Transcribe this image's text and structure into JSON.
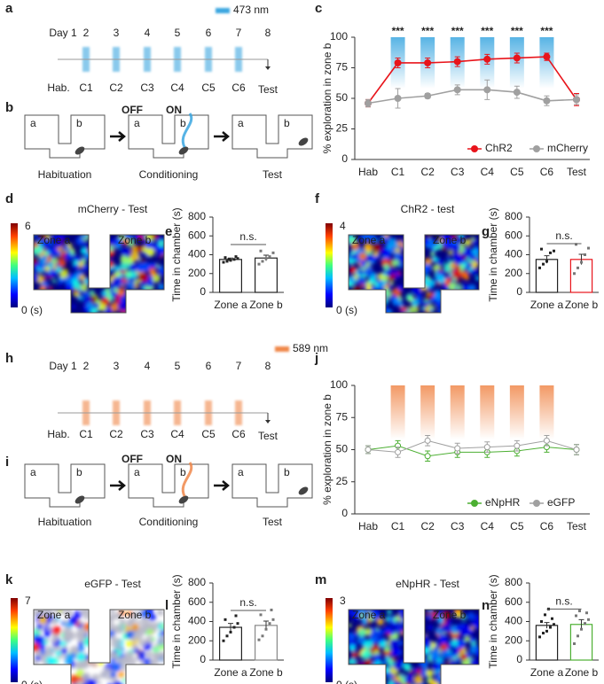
{
  "panel_labels": [
    "a",
    "b",
    "c",
    "d",
    "e",
    "f",
    "g",
    "h",
    "i",
    "j",
    "k",
    "l",
    "m",
    "n"
  ],
  "timelines": [
    {
      "laser": "473 nm",
      "color": "#3aa6e0",
      "day_start": "Day 1",
      "days": [
        "2",
        "3",
        "4",
        "5",
        "6",
        "7",
        "8"
      ],
      "sessions": [
        "Hab.",
        "C1",
        "C2",
        "C3",
        "C4",
        "C5",
        "C6",
        "Test"
      ]
    },
    {
      "laser": "589 nm",
      "color": "#f0874a",
      "day_start": "Day 1",
      "days": [
        "2",
        "3",
        "4",
        "5",
        "6",
        "7",
        "8"
      ],
      "sessions": [
        "Hab.",
        "C1",
        "C2",
        "C3",
        "C4",
        "C5",
        "C6",
        "Test"
      ]
    }
  ],
  "schematics": [
    {
      "zones": [
        "a",
        "b"
      ],
      "off": "OFF",
      "on": "ON",
      "on_color": "#3aa6e0",
      "stages": [
        "Habituation",
        "Conditioning",
        "Test"
      ]
    },
    {
      "zones": [
        "a",
        "b"
      ],
      "off": "OFF",
      "on": "ON",
      "on_color": "#f0874a",
      "stages": [
        "Habituation",
        "Conditioning",
        "Test"
      ]
    }
  ],
  "heatmaps": [
    {
      "title": "mCherry - Test",
      "title_color": "#222222",
      "cbar_max": 6,
      "cbar_min": "0 (s)",
      "zones": [
        "Zone a",
        "Zone b"
      ],
      "background": "#00007f"
    },
    {
      "title": "ChR2 - test",
      "title_color": "#e8141b",
      "cbar_max": 4,
      "cbar_min": "0 (s)",
      "zones": [
        "Zone a",
        "Zone b"
      ],
      "background": "#00007f"
    },
    {
      "title": "eGFP - Test",
      "title_color": "#222222",
      "cbar_max": 7,
      "cbar_min": "0 (s)",
      "zones": [
        "Zone a",
        "Zone b"
      ],
      "background": "#ffffff"
    },
    {
      "title": "eNpHR - Test",
      "title_color": "#4caf32",
      "cbar_max": 3,
      "cbar_min": "0 (s)",
      "zones": [
        "Zone a",
        "Zone b"
      ],
      "background": "#00007f"
    }
  ],
  "chart_data": [
    {
      "type": "line",
      "ylabel": "% exploration in zone b",
      "categories": [
        "Hab",
        "C1",
        "C2",
        "C3",
        "C4",
        "C5",
        "C6",
        "Test"
      ],
      "ylim": [
        0,
        100
      ],
      "yticks": [
        0,
        25,
        50,
        75,
        100
      ],
      "stim_color": "#3aa6e0",
      "annotations": [
        "***",
        "***",
        "***",
        "***",
        "***",
        "***"
      ],
      "legend": "lower right",
      "hollow_markers": false,
      "series": [
        {
          "name": "ChR2",
          "color": "#e8141b",
          "values": [
            46,
            79,
            79,
            80,
            82,
            83,
            84,
            49
          ],
          "errors": [
            3,
            4,
            4,
            4,
            4,
            4,
            3,
            5
          ]
        },
        {
          "name": "mCherry",
          "color": "#a0a0a0",
          "values": [
            46,
            50,
            52,
            57,
            57,
            55,
            48,
            49
          ],
          "errors": [
            3,
            8,
            2,
            4,
            8,
            5,
            4,
            4
          ]
        }
      ]
    },
    {
      "type": "bar",
      "ylabel": "Time in chamber (s)",
      "categories": [
        "Zone a",
        "Zone b"
      ],
      "values": [
        350,
        365
      ],
      "errors": [
        15,
        30
      ],
      "points": [
        [
          320,
          330,
          340,
          350,
          360,
          370,
          380,
          350
        ],
        [
          300,
          330,
          360,
          380,
          420,
          440
        ]
      ],
      "edge_colors": [
        "#222222",
        "#222222"
      ],
      "ylim": [
        0,
        800
      ],
      "yticks": [
        0,
        200,
        400,
        600,
        800
      ],
      "annotation": "n.s."
    },
    {
      "type": "bar",
      "ylabel": "Time in chamber (s)",
      "categories": [
        "Zone a",
        "Zone b"
      ],
      "values": [
        350,
        350
      ],
      "errors": [
        40,
        55
      ],
      "points": [
        [
          260,
          300,
          330,
          420,
          440,
          460
        ],
        [
          200,
          260,
          320,
          400,
          470,
          510
        ]
      ],
      "edge_colors": [
        "#222222",
        "#e8141b"
      ],
      "ylim": [
        0,
        800
      ],
      "yticks": [
        0,
        200,
        400,
        600,
        800
      ],
      "annotation": "n.s."
    },
    {
      "type": "line",
      "ylabel": "% exploration in zone b",
      "categories": [
        "Hab",
        "C1",
        "C2",
        "C3",
        "C4",
        "C5",
        "C6",
        "Test"
      ],
      "ylim": [
        0,
        100
      ],
      "yticks": [
        0,
        25,
        50,
        75,
        100
      ],
      "stim_color": "#f0874a",
      "annotations": [],
      "legend": "lower right",
      "hollow_markers": true,
      "series": [
        {
          "name": "eNpHR",
          "color": "#4caf32",
          "values": [
            50,
            53,
            45,
            48,
            48,
            49,
            52,
            50
          ],
          "errors": [
            3,
            4,
            4,
            4,
            4,
            4,
            4,
            4
          ]
        },
        {
          "name": "eGFP",
          "color": "#a0a0a0",
          "values": [
            50,
            48,
            57,
            51,
            52,
            53,
            57,
            50
          ],
          "errors": [
            3,
            4,
            4,
            4,
            4,
            4,
            4,
            4
          ]
        }
      ]
    },
    {
      "type": "bar",
      "ylabel": "Time in chamber (s)",
      "categories": [
        "Zone a",
        "Zone b"
      ],
      "values": [
        340,
        360
      ],
      "errors": [
        40,
        45
      ],
      "points": [
        [
          200,
          250,
          290,
          340,
          380,
          420,
          460
        ],
        [
          210,
          250,
          320,
          380,
          420,
          470,
          520
        ]
      ],
      "edge_colors": [
        "#222222",
        "#888888"
      ],
      "ylim": [
        0,
        800
      ],
      "yticks": [
        0,
        200,
        400,
        600,
        800
      ],
      "annotation": "n.s."
    },
    {
      "type": "bar",
      "ylabel": "Time in chamber (s)",
      "categories": [
        "Zone a",
        "Zone b"
      ],
      "values": [
        360,
        370
      ],
      "errors": [
        30,
        50
      ],
      "points": [
        [
          240,
          280,
          300,
          340,
          370,
          400,
          430,
          470,
          530
        ],
        [
          170,
          250,
          320,
          380,
          420,
          460,
          490,
          510
        ]
      ],
      "edge_colors": [
        "#222222",
        "#4caf32"
      ],
      "ylim": [
        0,
        800
      ],
      "yticks": [
        0,
        200,
        400,
        600,
        800
      ],
      "annotation": "n.s."
    }
  ]
}
